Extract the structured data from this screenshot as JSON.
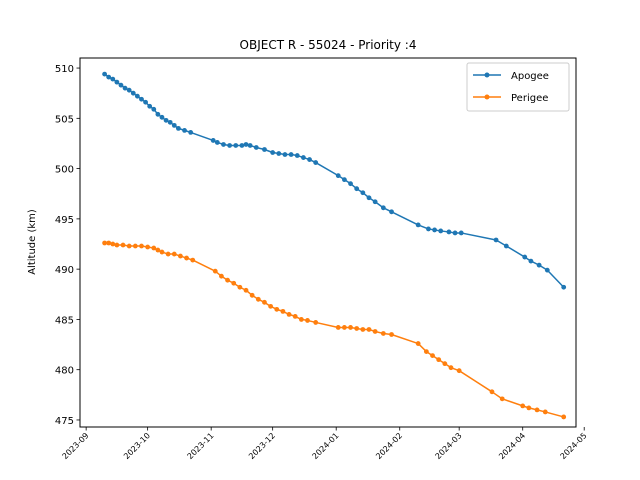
{
  "chart_data": {
    "type": "line",
    "title": "OBJECT R - 55024 - Priority :4",
    "xlabel": "",
    "ylabel": "Altitude (km)",
    "x_type": "date",
    "xlim": [
      "2023-08-29",
      "2024-04-27"
    ],
    "ylim": [
      474.3,
      511.0
    ],
    "y_ticks": [
      475,
      480,
      485,
      490,
      495,
      500,
      505,
      510
    ],
    "x_ticks": [
      "2023-09-01",
      "2023-10-01",
      "2023-11-01",
      "2023-12-01",
      "2024-01-01",
      "2024-02-01",
      "2024-03-01",
      "2024-04-01",
      "2024-05-01"
    ],
    "x_tick_labels": [
      "2023-09",
      "2023-10",
      "2023-11",
      "2023-12",
      "2024-01",
      "2024-02",
      "2024-03",
      "2024-04",
      "2024-05"
    ],
    "grid": false,
    "legend_position": "top-right",
    "series": [
      {
        "name": "Apogee",
        "color": "#1f77b4",
        "points": [
          [
            "2023-09-10",
            509.4
          ],
          [
            "2023-09-12",
            509.1
          ],
          [
            "2023-09-14",
            508.9
          ],
          [
            "2023-09-16",
            508.6
          ],
          [
            "2023-09-18",
            508.3
          ],
          [
            "2023-09-20",
            508.0
          ],
          [
            "2023-09-22",
            507.8
          ],
          [
            "2023-09-24",
            507.5
          ],
          [
            "2023-09-26",
            507.2
          ],
          [
            "2023-09-28",
            506.9
          ],
          [
            "2023-09-30",
            506.6
          ],
          [
            "2023-10-02",
            506.2
          ],
          [
            "2023-10-04",
            505.9
          ],
          [
            "2023-10-06",
            505.4
          ],
          [
            "2023-10-08",
            505.1
          ],
          [
            "2023-10-10",
            504.8
          ],
          [
            "2023-10-12",
            504.6
          ],
          [
            "2023-10-14",
            504.3
          ],
          [
            "2023-10-16",
            504.0
          ],
          [
            "2023-10-19",
            503.8
          ],
          [
            "2023-10-22",
            503.6
          ],
          [
            "2023-11-02",
            502.8
          ],
          [
            "2023-11-04",
            502.6
          ],
          [
            "2023-11-07",
            502.4
          ],
          [
            "2023-11-10",
            502.3
          ],
          [
            "2023-11-13",
            502.3
          ],
          [
            "2023-11-16",
            502.3
          ],
          [
            "2023-11-18",
            502.4
          ],
          [
            "2023-11-20",
            502.3
          ],
          [
            "2023-11-23",
            502.1
          ],
          [
            "2023-11-27",
            501.9
          ],
          [
            "2023-12-01",
            501.6
          ],
          [
            "2023-12-04",
            501.5
          ],
          [
            "2023-12-07",
            501.4
          ],
          [
            "2023-12-10",
            501.4
          ],
          [
            "2023-12-13",
            501.3
          ],
          [
            "2023-12-16",
            501.1
          ],
          [
            "2023-12-19",
            500.9
          ],
          [
            "2023-12-22",
            500.6
          ],
          [
            "2024-01-02",
            499.3
          ],
          [
            "2024-01-05",
            498.9
          ],
          [
            "2024-01-08",
            498.5
          ],
          [
            "2024-01-11",
            498.0
          ],
          [
            "2024-01-14",
            497.6
          ],
          [
            "2024-01-17",
            497.1
          ],
          [
            "2024-01-20",
            496.7
          ],
          [
            "2024-01-24",
            496.1
          ],
          [
            "2024-01-28",
            495.7
          ],
          [
            "2024-02-10",
            494.4
          ],
          [
            "2024-02-15",
            494.0
          ],
          [
            "2024-02-18",
            493.9
          ],
          [
            "2024-02-21",
            493.8
          ],
          [
            "2024-02-25",
            493.7
          ],
          [
            "2024-02-28",
            493.6
          ],
          [
            "2024-03-02",
            493.6
          ],
          [
            "2024-03-19",
            492.9
          ],
          [
            "2024-03-24",
            492.3
          ],
          [
            "2024-04-02",
            491.2
          ],
          [
            "2024-04-05",
            490.8
          ],
          [
            "2024-04-09",
            490.4
          ],
          [
            "2024-04-13",
            489.9
          ],
          [
            "2024-04-21",
            488.2
          ]
        ]
      },
      {
        "name": "Perigee",
        "color": "#ff7f0e",
        "points": [
          [
            "2023-09-10",
            492.6
          ],
          [
            "2023-09-12",
            492.6
          ],
          [
            "2023-09-14",
            492.5
          ],
          [
            "2023-09-16",
            492.4
          ],
          [
            "2023-09-19",
            492.4
          ],
          [
            "2023-09-22",
            492.3
          ],
          [
            "2023-09-25",
            492.3
          ],
          [
            "2023-09-28",
            492.3
          ],
          [
            "2023-10-01",
            492.2
          ],
          [
            "2023-10-04",
            492.1
          ],
          [
            "2023-10-06",
            491.9
          ],
          [
            "2023-10-08",
            491.7
          ],
          [
            "2023-10-11",
            491.5
          ],
          [
            "2023-10-14",
            491.5
          ],
          [
            "2023-10-17",
            491.3
          ],
          [
            "2023-10-20",
            491.1
          ],
          [
            "2023-10-23",
            490.9
          ],
          [
            "2023-11-03",
            489.8
          ],
          [
            "2023-11-06",
            489.3
          ],
          [
            "2023-11-09",
            488.9
          ],
          [
            "2023-11-12",
            488.6
          ],
          [
            "2023-11-15",
            488.2
          ],
          [
            "2023-11-18",
            487.9
          ],
          [
            "2023-11-21",
            487.4
          ],
          [
            "2023-11-24",
            487.0
          ],
          [
            "2023-11-27",
            486.7
          ],
          [
            "2023-11-30",
            486.3
          ],
          [
            "2023-12-03",
            486.0
          ],
          [
            "2023-12-06",
            485.8
          ],
          [
            "2023-12-09",
            485.5
          ],
          [
            "2023-12-12",
            485.3
          ],
          [
            "2023-12-15",
            485.0
          ],
          [
            "2023-12-18",
            484.9
          ],
          [
            "2023-12-22",
            484.7
          ],
          [
            "2024-01-02",
            484.2
          ],
          [
            "2024-01-05",
            484.2
          ],
          [
            "2024-01-08",
            484.2
          ],
          [
            "2024-01-11",
            484.1
          ],
          [
            "2024-01-14",
            484.0
          ],
          [
            "2024-01-17",
            484.0
          ],
          [
            "2024-01-20",
            483.8
          ],
          [
            "2024-01-24",
            483.6
          ],
          [
            "2024-01-28",
            483.5
          ],
          [
            "2024-02-10",
            482.6
          ],
          [
            "2024-02-14",
            481.8
          ],
          [
            "2024-02-17",
            481.4
          ],
          [
            "2024-02-20",
            481.0
          ],
          [
            "2024-02-23",
            480.6
          ],
          [
            "2024-02-26",
            480.2
          ],
          [
            "2024-03-01",
            479.9
          ],
          [
            "2024-03-17",
            477.8
          ],
          [
            "2024-03-22",
            477.1
          ],
          [
            "2024-04-01",
            476.4
          ],
          [
            "2024-04-04",
            476.2
          ],
          [
            "2024-04-08",
            476.0
          ],
          [
            "2024-04-12",
            475.8
          ],
          [
            "2024-04-21",
            475.3
          ]
        ]
      }
    ]
  }
}
